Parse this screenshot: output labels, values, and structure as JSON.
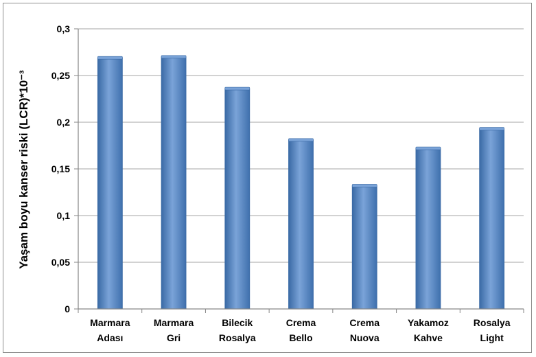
{
  "chart_data": {
    "type": "bar",
    "title": "",
    "xlabel": "",
    "ylabel": "Yaşam boyu kanser riski (LCR)*10⁻³",
    "categories": [
      [
        "Marmara",
        "Adası"
      ],
      [
        "Marmara",
        "Gri"
      ],
      [
        "Bilecik",
        "Rosalya"
      ],
      [
        "Crema",
        "Bello"
      ],
      [
        "Crema",
        "Nuova"
      ],
      [
        "Yakamoz",
        "Kahve"
      ],
      [
        "Rosalya",
        "Light"
      ]
    ],
    "values": [
      0.269,
      0.27,
      0.236,
      0.181,
      0.132,
      0.172,
      0.193
    ],
    "ylim": [
      0,
      0.3
    ],
    "yticks": [
      0,
      0.05,
      0.1,
      0.15,
      0.2,
      0.25,
      0.3
    ],
    "ytick_labels": [
      "0",
      "0,05",
      "0,1",
      "0,15",
      "0,2",
      "0,25",
      "0,3"
    ],
    "grid": true,
    "legend": "none",
    "colors": {
      "bar": "#4f81bd",
      "bar_dark": "#3a6aa5",
      "bar_light": "#7aa3d8",
      "grid": "#a6a6a6",
      "axis": "#868686"
    }
  }
}
